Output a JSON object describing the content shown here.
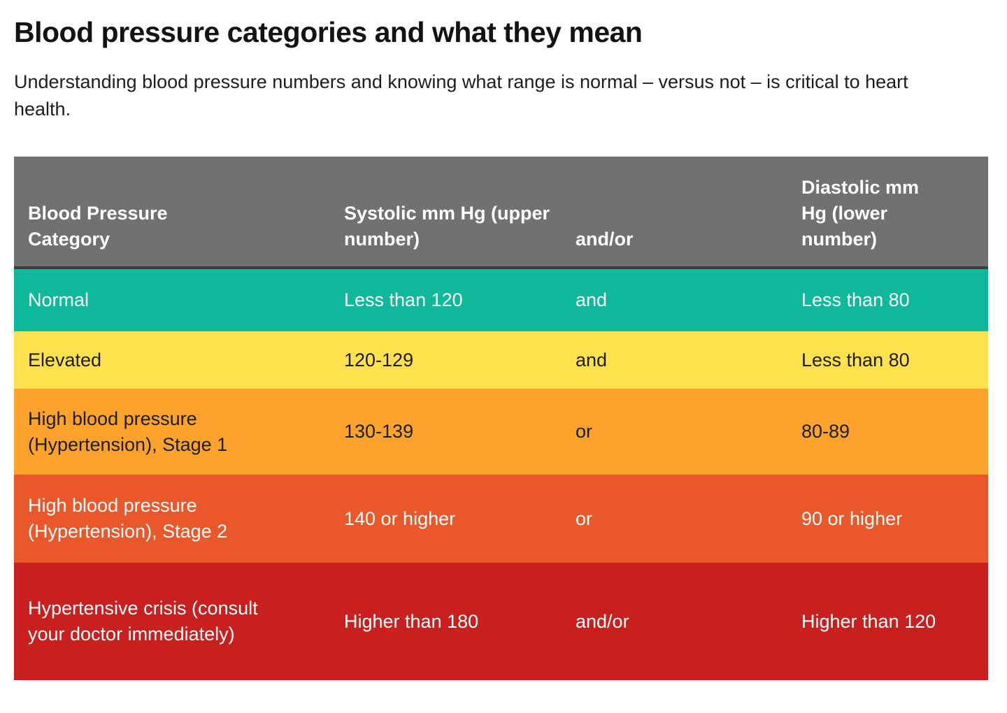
{
  "header": {
    "title": "Blood pressure categories and what they mean",
    "subtitle": "Understanding blood pressure numbers and knowing what range is normal – versus not – is critical to heart health."
  },
  "table": {
    "columns": [
      {
        "label": "Blood Pressure Category"
      },
      {
        "label": "Systolic mm Hg (upper number)"
      },
      {
        "label": "and/or"
      },
      {
        "label": "Diastolic mm Hg (lower number)"
      }
    ],
    "rows": [
      {
        "category": "Normal",
        "systolic": "Less than 120",
        "connector": "and",
        "diastolic": "Less than 80",
        "status": "normal",
        "row_color": "#0db89b",
        "text_color": "#ffffff"
      },
      {
        "category": "Elevated",
        "systolic": "120-129",
        "connector": "and",
        "diastolic": "Less than 80",
        "status": "elevated",
        "row_color": "#fde24d",
        "text_color": "#1d1d1d"
      },
      {
        "category": "High blood pressure (Hypertension), Stage 1",
        "systolic": "130-139",
        "connector": "or",
        "diastolic": "80-89",
        "status": "hypertension-stage-1",
        "row_color": "#fda22a",
        "text_color": "#1d1d1d"
      },
      {
        "category": "High blood pressure (Hypertension), Stage 2",
        "systolic": "140 or higher",
        "connector": "or",
        "diastolic": "90 or higher",
        "status": "hypertension-stage-2",
        "row_color": "#e9582b",
        "text_color": "#ffffff"
      },
      {
        "category": "Hypertensive crisis (consult your doctor immediately)",
        "systolic": "Higher than 180",
        "connector": "and/or",
        "diastolic": "Higher than 120",
        "status": "hypertensive-crisis",
        "row_color": "#c81f1f",
        "text_color": "#ffffff"
      }
    ],
    "header_bg": "#717171",
    "header_text_color": "#ffffff",
    "header_border_color": "#3b3b3b"
  }
}
